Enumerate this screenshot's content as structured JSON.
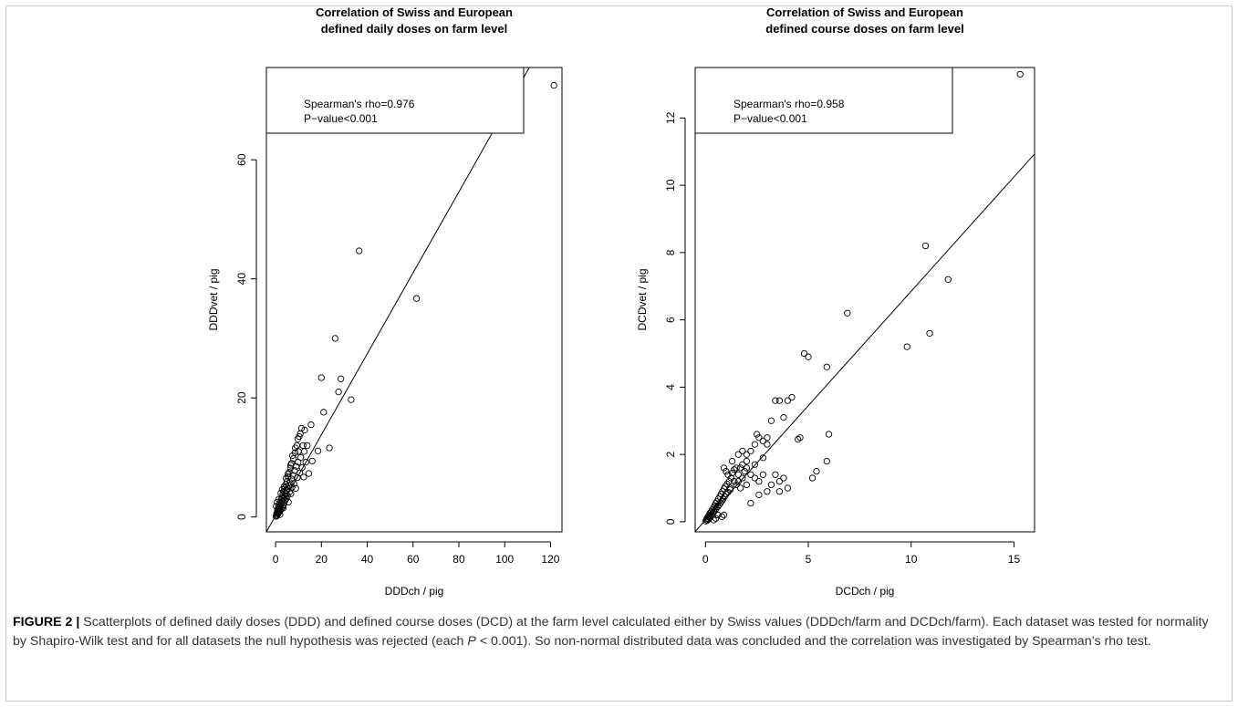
{
  "caption": {
    "label": "FIGURE 2 |",
    "part1": "Scatterplots of defined daily doses (DDD) and defined course doses (DCD) at the farm level calculated either by Swiss values (DDDch/farm and DCDch/farm). Each dataset was tested for normality by Shapiro-Wilk test and for all datasets the null hypothesis was rejected (each ",
    "p_symbol": "P",
    "part2": " < 0.001). So non-normal distributed data was concluded and the correlation was investigated by Spearman’s rho test."
  },
  "chart_data": [
    {
      "type": "scatter",
      "title": "Correlation of Swiss and European\ndefined daily doses on farm level",
      "xlabel": "DDDch / pig",
      "ylabel": "DDDvet / pig",
      "xlim": [
        -4,
        125
      ],
      "ylim": [
        -2.5,
        75.5
      ],
      "xticks": [
        0,
        20,
        40,
        60,
        80,
        100,
        120
      ],
      "yticks": [
        0,
        20,
        40,
        60
      ],
      "annotation": [
        "Spearman's rho=0.976",
        "P−value<0.001"
      ],
      "fit_line": {
        "intercept": 0.2,
        "slope": 0.68
      },
      "points": [
        [
          0.2,
          0.1
        ],
        [
          0.4,
          0.3
        ],
        [
          0.5,
          0.6
        ],
        [
          0.6,
          0.2
        ],
        [
          0.8,
          0.8
        ],
        [
          0.9,
          1.2
        ],
        [
          1.0,
          0.5
        ],
        [
          1.1,
          1.0
        ],
        [
          1.2,
          1.6
        ],
        [
          1.3,
          0.7
        ],
        [
          1.5,
          1.3
        ],
        [
          1.6,
          2.0
        ],
        [
          1.7,
          0.9
        ],
        [
          1.8,
          1.5
        ],
        [
          2.0,
          2.4
        ],
        [
          2.1,
          1.1
        ],
        [
          2.2,
          1.8
        ],
        [
          2.4,
          2.9
        ],
        [
          2.5,
          1.4
        ],
        [
          2.6,
          2.2
        ],
        [
          2.8,
          3.3
        ],
        [
          3.0,
          1.7
        ],
        [
          3.1,
          2.6
        ],
        [
          3.2,
          3.8
        ],
        [
          3.4,
          2.0
        ],
        [
          3.5,
          3.1
        ],
        [
          3.6,
          4.3
        ],
        [
          3.8,
          2.4
        ],
        [
          4.0,
          3.5
        ],
        [
          4.1,
          4.9
        ],
        [
          4.2,
          2.8
        ],
        [
          4.4,
          3.9
        ],
        [
          4.5,
          5.5
        ],
        [
          4.7,
          3.1
        ],
        [
          4.8,
          4.4
        ],
        [
          5.0,
          6.0
        ],
        [
          5.2,
          3.6
        ],
        [
          5.3,
          4.8
        ],
        [
          5.5,
          6.8
        ],
        [
          5.6,
          2.5
        ],
        [
          5.8,
          5.3
        ],
        [
          6.0,
          7.5
        ],
        [
          6.1,
          4.2
        ],
        [
          6.3,
          5.8
        ],
        [
          6.5,
          8.2
        ],
        [
          6.7,
          3.9
        ],
        [
          6.9,
          6.4
        ],
        [
          7.0,
          9.0
        ],
        [
          7.2,
          5.0
        ],
        [
          7.5,
          7.0
        ],
        [
          7.8,
          9.8
        ],
        [
          8.0,
          5.6
        ],
        [
          8.3,
          7.8
        ],
        [
          8.5,
          10.8
        ],
        [
          8.8,
          4.8
        ],
        [
          9.0,
          8.5
        ],
        [
          9.3,
          12.0
        ],
        [
          9.5,
          6.6
        ],
        [
          9.8,
          9.2
        ],
        [
          10.0,
          11.0
        ],
        [
          10.3,
          13.5
        ],
        [
          10.6,
          7.4
        ],
        [
          11.0,
          10.0
        ],
        [
          11.3,
          14.9
        ],
        [
          11.6,
          8.3
        ],
        [
          12.0,
          12.0
        ],
        [
          12.3,
          6.7
        ],
        [
          12.7,
          14.6
        ],
        [
          13.2,
          9.2
        ],
        [
          13.8,
          12.0
        ],
        [
          14.5,
          7.3
        ],
        [
          15.5,
          15.5
        ],
        [
          16.0,
          9.4
        ],
        [
          18.5,
          11.1
        ],
        [
          20.0,
          23.4
        ],
        [
          21.0,
          17.6
        ],
        [
          23.5,
          11.6
        ],
        [
          26.0,
          30.0
        ],
        [
          27.5,
          21.0
        ],
        [
          28.5,
          23.2
        ],
        [
          33.0,
          19.7
        ],
        [
          36.5,
          44.7
        ],
        [
          61.5,
          36.7
        ],
        [
          121.5,
          72.5
        ],
        [
          0.3,
          1.8
        ],
        [
          0.7,
          2.5
        ],
        [
          1.4,
          3.0
        ],
        [
          2.3,
          4.0
        ],
        [
          2.9,
          4.6
        ],
        [
          3.7,
          5.1
        ],
        [
          4.6,
          6.5
        ],
        [
          5.4,
          7.2
        ],
        [
          6.6,
          8.7
        ],
        [
          7.4,
          10.3
        ],
        [
          8.6,
          11.6
        ],
        [
          9.7,
          13.1
        ],
        [
          10.8,
          14.0
        ],
        [
          12.5,
          11.0
        ],
        [
          1.9,
          0.4
        ],
        [
          3.3,
          1.5
        ]
      ]
    },
    {
      "type": "scatter",
      "title": "Correlation of Swiss and European\ndefined course doses on farm level",
      "xlabel": "DCDch / pig",
      "ylabel": "DCDvet / pig",
      "xlim": [
        -0.5,
        16.0
      ],
      "ylim": [
        -0.3,
        13.5
      ],
      "xticks": [
        0,
        5,
        10,
        15
      ],
      "yticks": [
        0,
        2,
        4,
        6,
        8,
        10,
        12
      ],
      "annotation": [
        "Spearman's rho=0.958",
        "P−value<0.001"
      ],
      "fit_line": {
        "intercept": 0.05,
        "slope": 0.68
      },
      "points": [
        [
          0.02,
          0.02
        ],
        [
          0.05,
          0.06
        ],
        [
          0.08,
          0.1
        ],
        [
          0.1,
          0.04
        ],
        [
          0.12,
          0.15
        ],
        [
          0.15,
          0.08
        ],
        [
          0.18,
          0.2
        ],
        [
          0.2,
          0.12
        ],
        [
          0.22,
          0.26
        ],
        [
          0.25,
          0.16
        ],
        [
          0.28,
          0.3
        ],
        [
          0.3,
          0.2
        ],
        [
          0.33,
          0.36
        ],
        [
          0.36,
          0.25
        ],
        [
          0.4,
          0.42
        ],
        [
          0.42,
          0.3
        ],
        [
          0.45,
          0.48
        ],
        [
          0.48,
          0.35
        ],
        [
          0.5,
          0.55
        ],
        [
          0.53,
          0.4
        ],
        [
          0.56,
          0.6
        ],
        [
          0.6,
          0.45
        ],
        [
          0.63,
          0.68
        ],
        [
          0.66,
          0.5
        ],
        [
          0.7,
          0.75
        ],
        [
          0.73,
          0.56
        ],
        [
          0.76,
          0.82
        ],
        [
          0.8,
          0.62
        ],
        [
          0.83,
          0.9
        ],
        [
          0.86,
          0.68
        ],
        [
          0.9,
          0.98
        ],
        [
          0.93,
          0.75
        ],
        [
          0.96,
          1.05
        ],
        [
          1.0,
          0.82
        ],
        [
          1.05,
          1.12
        ],
        [
          1.1,
          0.88
        ],
        [
          1.15,
          1.2
        ],
        [
          1.2,
          0.95
        ],
        [
          1.25,
          1.3
        ],
        [
          0.9,
          1.6
        ],
        [
          1.0,
          1.5
        ],
        [
          1.1,
          1.4
        ],
        [
          1.3,
          1.45
        ],
        [
          1.4,
          1.55
        ],
        [
          1.5,
          1.6
        ],
        [
          1.6,
          1.4
        ],
        [
          1.7,
          1.6
        ],
        [
          1.8,
          1.7
        ],
        [
          1.9,
          1.5
        ],
        [
          2.0,
          1.6
        ],
        [
          1.2,
          1.0
        ],
        [
          1.4,
          1.2
        ],
        [
          1.6,
          1.2
        ],
        [
          1.8,
          1.3
        ],
        [
          2.0,
          1.1
        ],
        [
          2.2,
          1.4
        ],
        [
          2.4,
          1.3
        ],
        [
          2.6,
          1.2
        ],
        [
          2.0,
          2.0
        ],
        [
          2.2,
          2.1
        ],
        [
          2.4,
          2.3
        ],
        [
          2.6,
          2.5
        ],
        [
          2.8,
          2.4
        ],
        [
          3.0,
          2.3
        ],
        [
          3.2,
          3.0
        ],
        [
          3.4,
          3.6
        ],
        [
          3.6,
          3.6
        ],
        [
          3.8,
          3.1
        ],
        [
          4.0,
          3.6
        ],
        [
          4.2,
          3.7
        ],
        [
          4.5,
          2.45
        ],
        [
          4.6,
          2.5
        ],
        [
          4.8,
          5.0
        ],
        [
          5.0,
          4.9
        ],
        [
          5.9,
          4.6
        ],
        [
          6.0,
          2.6
        ],
        [
          5.9,
          1.8
        ],
        [
          5.2,
          1.3
        ],
        [
          5.4,
          1.5
        ],
        [
          6.9,
          6.2
        ],
        [
          9.8,
          5.2
        ],
        [
          10.7,
          8.2
        ],
        [
          10.9,
          5.6
        ],
        [
          11.8,
          7.2
        ],
        [
          15.3,
          13.3
        ],
        [
          2.2,
          0.55
        ],
        [
          2.6,
          0.8
        ],
        [
          3.0,
          0.9
        ],
        [
          3.2,
          1.1
        ],
        [
          3.6,
          0.9
        ],
        [
          3.8,
          1.3
        ],
        [
          4.0,
          1.0
        ],
        [
          2.8,
          1.4
        ],
        [
          3.4,
          1.4
        ],
        [
          3.6,
          1.2
        ],
        [
          0.5,
          0.1
        ],
        [
          0.6,
          0.2
        ],
        [
          0.8,
          0.15
        ],
        [
          0.9,
          0.2
        ],
        [
          0.4,
          0.05
        ],
        [
          2.0,
          1.8
        ],
        [
          1.6,
          2.0
        ],
        [
          1.8,
          2.1
        ],
        [
          2.5,
          2.6
        ],
        [
          3.0,
          2.5
        ],
        [
          1.3,
          1.8
        ],
        [
          1.5,
          1.1
        ],
        [
          1.7,
          1.0
        ],
        [
          2.8,
          1.9
        ],
        [
          2.4,
          1.7
        ]
      ]
    }
  ]
}
